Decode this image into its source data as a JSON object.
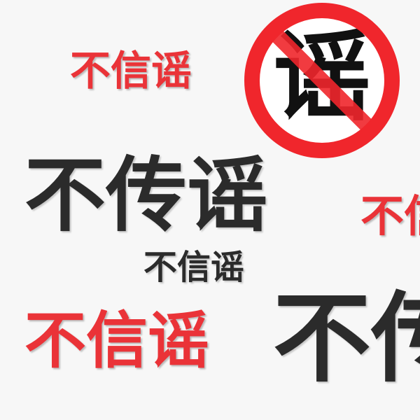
{
  "slogans": [
    "不信谣",
    "不传谣",
    "不信谣",
    "不信谣",
    "不信谣",
    "不传谣"
  ],
  "badge": {
    "label": "谣"
  }
}
